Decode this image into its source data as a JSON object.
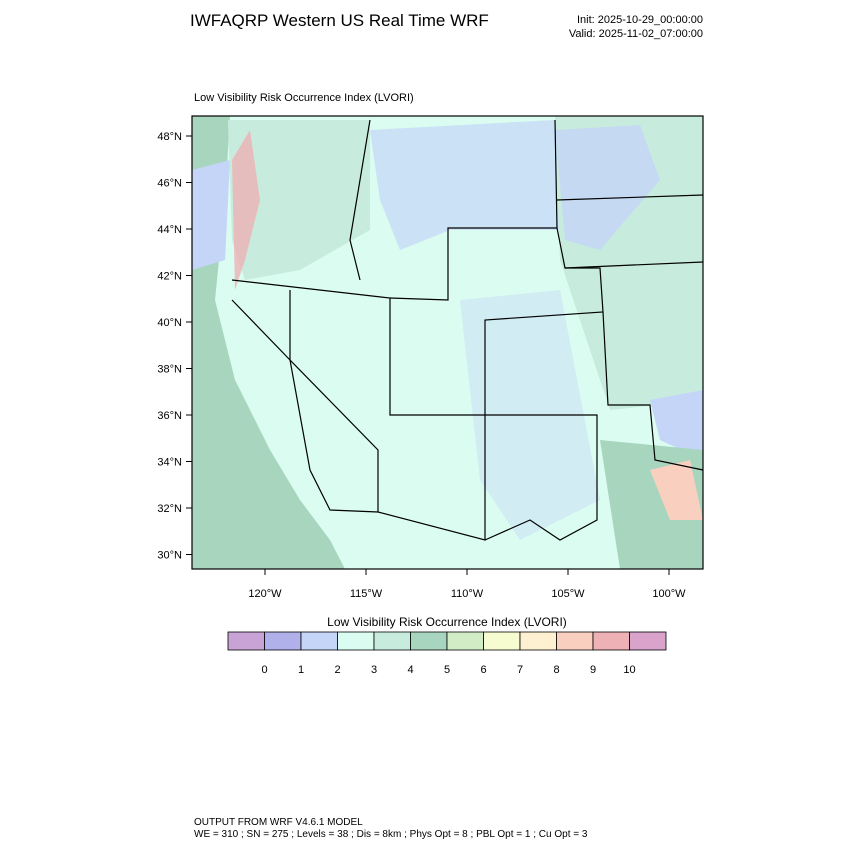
{
  "header": {
    "title": "IWFAQRP Western US Real Time WRF",
    "init": "Init: 2025-10-29_00:00:00",
    "valid": "Valid: 2025-11-02_07:00:00"
  },
  "map": {
    "subtitle": "Low Visibility Risk Occurrence Index   (LVORI)",
    "lat_ticks": [
      "48°N",
      "46°N",
      "44°N",
      "42°N",
      "40°N",
      "38°N",
      "36°N",
      "34°N",
      "32°N",
      "30°N"
    ],
    "lon_ticks": [
      "120°W",
      "115°W",
      "110°W",
      "105°W",
      "100°W"
    ]
  },
  "colorbar": {
    "title": "Low Visibility Risk Occurrence Index  (LVORI)",
    "colors": [
      "#c9a3d6",
      "#b0b0ea",
      "#c4d5f8",
      "#dafcf1",
      "#c7ecdd",
      "#a8d5be",
      "#d2edc6",
      "#f6fccf",
      "#fdf1d1",
      "#f9d0c0",
      "#eeb1b5",
      "#d9a3cb"
    ],
    "labels": [
      "0",
      "1",
      "2",
      "3",
      "4",
      "5",
      "6",
      "7",
      "8",
      "9",
      "10"
    ]
  },
  "footer": {
    "line1": "OUTPUT FROM WRF V4.6.1 MODEL",
    "line2": "WE = 310 ; SN = 275 ; Levels = 38 ; Dis = 8km ; Phys Opt = 8 ; PBL Opt = 1 ; Cu Opt = 3"
  }
}
